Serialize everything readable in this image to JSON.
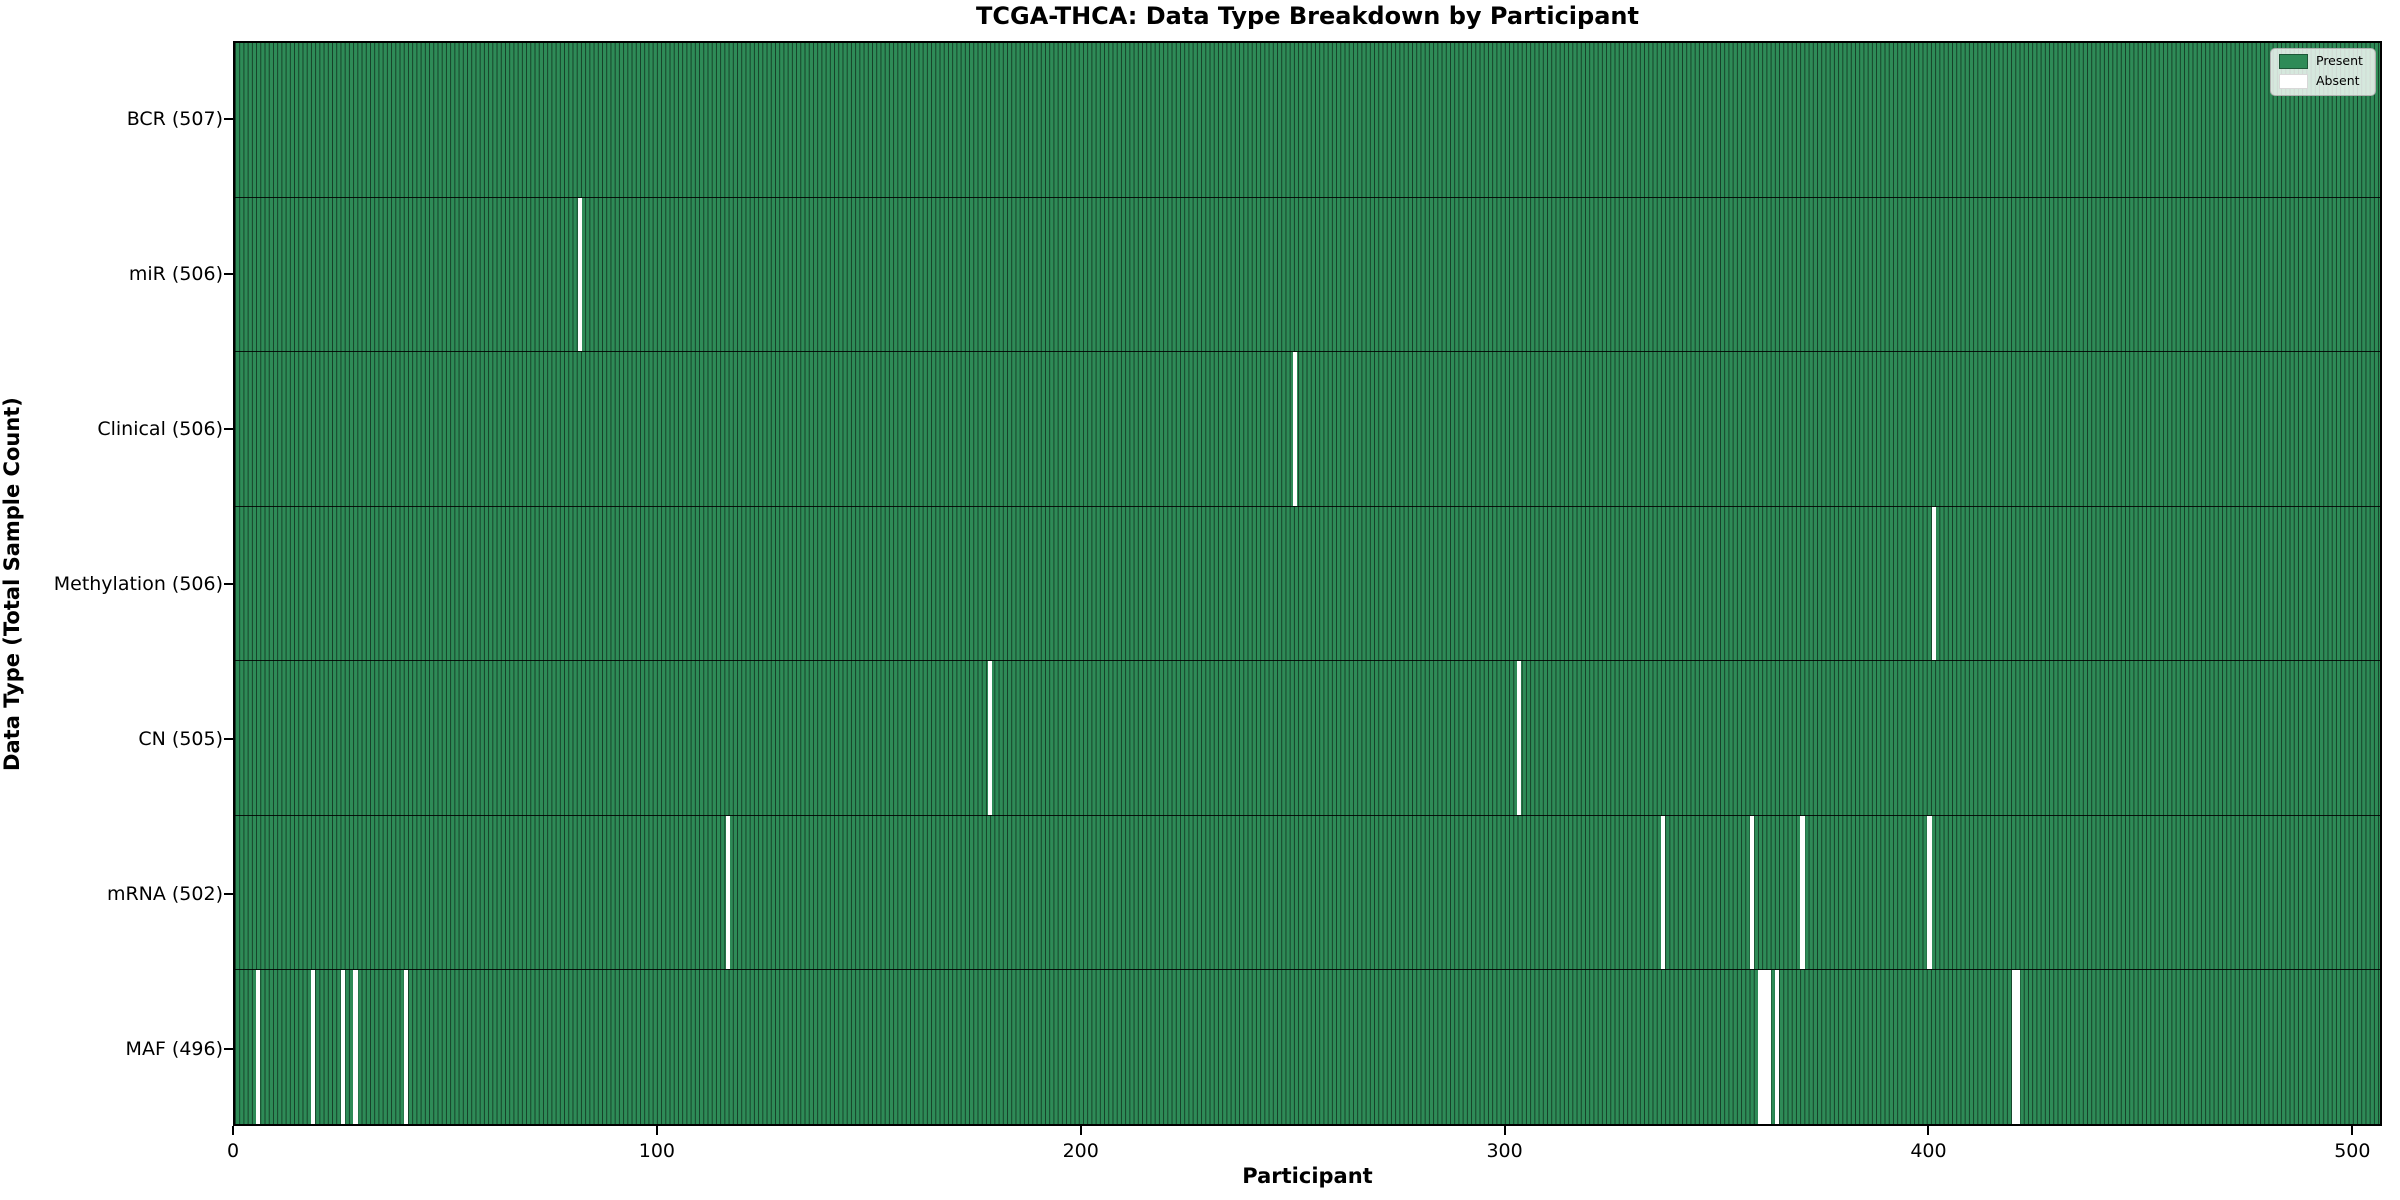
{
  "title": "TCGA-THCA: Data Type Breakdown by Participant",
  "xlabel": "Participant",
  "ylabel": "Data Type (Total Sample Count)",
  "legend": {
    "present_label": "Present",
    "absent_label": "Absent",
    "position": "upper right"
  },
  "colors": {
    "present": "#2e8b57",
    "bar_edge": "rgba(0,0,0,0.55)",
    "absent": "#ffffff",
    "spine": "#000000",
    "legend_bg": "rgba(255,255,255,0.8)"
  },
  "chart_data": {
    "type": "heatmap",
    "title": "TCGA-THCA: Data Type Breakdown by Participant",
    "xlabel": "Participant",
    "ylabel": "Data Type (Total Sample Count)",
    "n_participants": 507,
    "x_ticks": [
      0,
      100,
      200,
      300,
      400,
      500
    ],
    "x_range": [
      0,
      507
    ],
    "grid": false,
    "legend_entries": [
      "Present",
      "Absent"
    ],
    "legend_position": "upper right",
    "rows": [
      {
        "label": "BCR (507)",
        "data_type": "BCR",
        "present_count": 507,
        "absent_participants": []
      },
      {
        "label": "miR (506)",
        "data_type": "miR",
        "present_count": 506,
        "absent_participants": [
          81
        ]
      },
      {
        "label": "Clinical (506)",
        "data_type": "Clinical",
        "present_count": 506,
        "absent_participants": [
          250
        ]
      },
      {
        "label": "Methylation (506)",
        "data_type": "Methylation",
        "present_count": 506,
        "absent_participants": [
          401
        ]
      },
      {
        "label": "CN (505)",
        "data_type": "CN",
        "present_count": 505,
        "absent_participants": [
          178,
          303
        ]
      },
      {
        "label": "mRNA (502)",
        "data_type": "mRNA",
        "present_count": 502,
        "absent_participants": [
          116,
          337,
          358,
          370,
          400
        ]
      },
      {
        "label": "MAF (496)",
        "data_type": "MAF",
        "present_count": 496,
        "absent_participants": [
          5,
          18,
          25,
          28,
          40,
          360,
          361,
          362,
          364,
          420,
          421
        ]
      }
    ]
  }
}
